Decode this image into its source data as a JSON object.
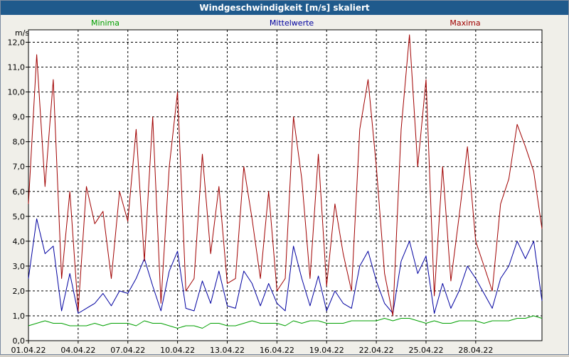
{
  "window": {
    "title": "Windgeschwindigkeit [m/s] skaliert"
  },
  "chart_data": {
    "type": "line",
    "title": "Windgeschwindigkeit [m/s] skaliert",
    "ylabel": "m/s",
    "ylim": [
      0,
      12.5
    ],
    "yticks": [
      0,
      1,
      2,
      3,
      4,
      5,
      6,
      7,
      8,
      9,
      10,
      11,
      12
    ],
    "ytick_labels": [
      "0,0",
      "1,0",
      "2,0",
      "3,0",
      "4,0",
      "5,0",
      "6,0",
      "7,0",
      "8,0",
      "9,0",
      "10,0",
      "11,0",
      "12,0"
    ],
    "xlim": [
      0,
      31
    ],
    "xticks": [
      0,
      3,
      6,
      9,
      12,
      15,
      18,
      21,
      24,
      27
    ],
    "xtick_labels": [
      "01.04.22",
      "04.04.22",
      "07.04.22",
      "10.04.22",
      "13.04.22",
      "16.04.22",
      "19.04.22",
      "22.04.22",
      "25.04.22",
      "28.04.22"
    ],
    "grid": true,
    "series": [
      {
        "name": "Minima",
        "color": "#00a000",
        "x": [
          0,
          0.5,
          1,
          1.5,
          2,
          2.5,
          3,
          3.5,
          4,
          4.5,
          5,
          5.5,
          6,
          6.5,
          7,
          7.5,
          8,
          8.5,
          9,
          9.5,
          10,
          10.5,
          11,
          11.5,
          12,
          12.5,
          13,
          13.5,
          14,
          14.5,
          15,
          15.5,
          16,
          16.5,
          17,
          17.5,
          18,
          18.5,
          19,
          19.5,
          20,
          20.5,
          21,
          21.5,
          22,
          22.5,
          23,
          23.5,
          24,
          24.5,
          25,
          25.5,
          26,
          26.5,
          27,
          27.5,
          28,
          28.5,
          29,
          29.5,
          30,
          30.5,
          31
        ],
        "values": [
          0.6,
          0.7,
          0.8,
          0.7,
          0.7,
          0.6,
          0.6,
          0.6,
          0.7,
          0.6,
          0.7,
          0.7,
          0.7,
          0.6,
          0.8,
          0.7,
          0.7,
          0.6,
          0.5,
          0.6,
          0.6,
          0.5,
          0.7,
          0.7,
          0.6,
          0.6,
          0.7,
          0.8,
          0.7,
          0.7,
          0.7,
          0.6,
          0.8,
          0.7,
          0.8,
          0.8,
          0.7,
          0.7,
          0.7,
          0.8,
          0.8,
          0.8,
          0.8,
          0.9,
          0.8,
          0.9,
          0.9,
          0.8,
          0.7,
          0.8,
          0.7,
          0.7,
          0.8,
          0.8,
          0.8,
          0.7,
          0.8,
          0.8,
          0.8,
          0.9,
          0.9,
          1.0,
          0.9
        ]
      },
      {
        "name": "Mittelwerte",
        "color": "#0000a0",
        "x": [
          0,
          0.5,
          1,
          1.5,
          2,
          2.5,
          3,
          3.5,
          4,
          4.5,
          5,
          5.5,
          6,
          6.5,
          7,
          7.5,
          8,
          8.5,
          9,
          9.5,
          10,
          10.5,
          11,
          11.5,
          12,
          12.5,
          13,
          13.5,
          14,
          14.5,
          15,
          15.5,
          16,
          16.5,
          17,
          17.5,
          18,
          18.5,
          19,
          19.5,
          20,
          20.5,
          21,
          21.5,
          22,
          22.5,
          23,
          23.5,
          24,
          24.5,
          25,
          25.5,
          26,
          26.5,
          27,
          27.5,
          28,
          28.5,
          29,
          29.5,
          30,
          30.5,
          31
        ],
        "values": [
          2.5,
          4.9,
          3.5,
          3.8,
          1.2,
          2.7,
          1.1,
          1.3,
          1.5,
          1.9,
          1.4,
          2.0,
          1.9,
          2.5,
          3.3,
          2.2,
          1.2,
          2.8,
          3.6,
          1.3,
          1.2,
          2.4,
          1.5,
          2.8,
          1.4,
          1.3,
          2.8,
          2.3,
          1.4,
          2.3,
          1.5,
          1.2,
          3.8,
          2.5,
          1.4,
          2.6,
          1.2,
          2.0,
          1.5,
          1.3,
          3.0,
          3.6,
          2.4,
          1.5,
          1.1,
          3.2,
          4.0,
          2.7,
          3.4,
          1.1,
          2.3,
          1.3,
          2.0,
          3.0,
          2.5,
          1.9,
          1.3,
          2.5,
          3.0,
          4.0,
          3.3,
          4.0,
          1.6
        ]
      },
      {
        "name": "Maxima",
        "color": "#a00000",
        "x": [
          0,
          0.5,
          1,
          1.5,
          2,
          2.5,
          3,
          3.5,
          4,
          4.5,
          5,
          5.5,
          6,
          6.5,
          7,
          7.5,
          8,
          8.5,
          9,
          9.5,
          10,
          10.5,
          11,
          11.5,
          12,
          12.5,
          13,
          13.5,
          14,
          14.5,
          15,
          15.5,
          16,
          16.5,
          17,
          17.5,
          18,
          18.5,
          19,
          19.5,
          20,
          20.5,
          21,
          21.5,
          22,
          22.5,
          23,
          23.5,
          24,
          24.5,
          25,
          25.5,
          26,
          26.5,
          27,
          27.5,
          28,
          28.5,
          29,
          29.5,
          30,
          30.5,
          31
        ],
        "values": [
          5.5,
          11.5,
          6.2,
          10.5,
          2.5,
          6.0,
          1.2,
          6.2,
          4.7,
          5.2,
          2.5,
          6.0,
          4.8,
          8.5,
          3.2,
          9.0,
          1.5,
          7.0,
          10.0,
          2.0,
          2.5,
          7.5,
          3.5,
          6.2,
          2.3,
          2.5,
          7.0,
          4.9,
          2.5,
          6.0,
          2.0,
          2.5,
          9.0,
          6.5,
          2.5,
          7.5,
          2.2,
          5.5,
          3.5,
          2.0,
          8.5,
          10.5,
          7.0,
          2.7,
          1.0,
          8.5,
          12.3,
          7.0,
          10.5,
          1.8,
          7.0,
          2.4,
          5.0,
          7.8,
          4.0,
          3.0,
          2.0,
          5.5,
          6.5,
          8.7,
          7.8,
          6.8,
          4.5
        ]
      }
    ]
  }
}
